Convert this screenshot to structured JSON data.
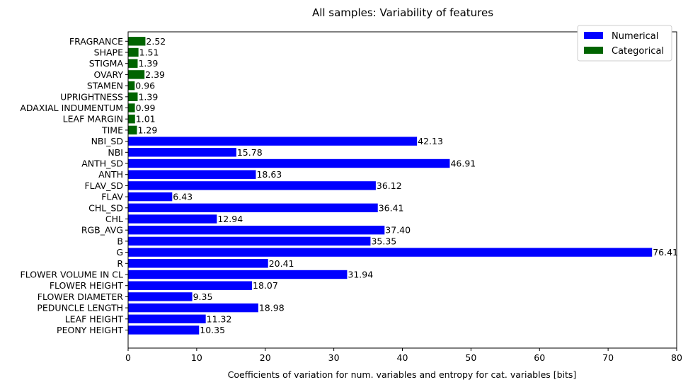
{
  "chart_data": {
    "type": "bar",
    "orientation": "horizontal",
    "title": "All samples: Variability of features",
    "xlabel": "Coefficients of variation for num. variables and entropy for cat. variables [bits]",
    "ylabel": "",
    "xlim": [
      0,
      80
    ],
    "xticks": [
      0,
      10,
      20,
      30,
      40,
      50,
      60,
      70,
      80
    ],
    "grid": false,
    "legend_position": "top-right",
    "legend": [
      {
        "name": "Numerical",
        "color": "#0000ff"
      },
      {
        "name": "Categorical",
        "color": "#006400"
      }
    ],
    "bars": [
      {
        "label": "PEONY HEIGHT",
        "value": 10.35,
        "value_label": "10.35",
        "group": "Numerical"
      },
      {
        "label": "LEAF HEIGHT",
        "value": 11.32,
        "value_label": "11.32",
        "group": "Numerical"
      },
      {
        "label": "PEDUNCLE LENGTH",
        "value": 18.98,
        "value_label": "18.98",
        "group": "Numerical"
      },
      {
        "label": "FLOWER DIAMETER",
        "value": 9.35,
        "value_label": "9.35",
        "group": "Numerical"
      },
      {
        "label": "FLOWER HEIGHT",
        "value": 18.07,
        "value_label": "18.07",
        "group": "Numerical"
      },
      {
        "label": "FLOWER VOLUME IN CL",
        "value": 31.94,
        "value_label": "31.94",
        "group": "Numerical"
      },
      {
        "label": "R",
        "value": 20.41,
        "value_label": "20.41",
        "group": "Numerical"
      },
      {
        "label": "G",
        "value": 76.41,
        "value_label": "76.41",
        "group": "Numerical"
      },
      {
        "label": "B",
        "value": 35.35,
        "value_label": "35.35",
        "group": "Numerical"
      },
      {
        "label": "RGB_AVG",
        "value": 37.4,
        "value_label": "37.40",
        "group": "Numerical"
      },
      {
        "label": "CHL",
        "value": 12.94,
        "value_label": "12.94",
        "group": "Numerical"
      },
      {
        "label": "CHL_SD",
        "value": 36.41,
        "value_label": "36.41",
        "group": "Numerical"
      },
      {
        "label": "FLAV",
        "value": 6.43,
        "value_label": "6.43",
        "group": "Numerical"
      },
      {
        "label": "FLAV_SD",
        "value": 36.12,
        "value_label": "36.12",
        "group": "Numerical"
      },
      {
        "label": "ANTH",
        "value": 18.63,
        "value_label": "18.63",
        "group": "Numerical"
      },
      {
        "label": "ANTH_SD",
        "value": 46.91,
        "value_label": "46.91",
        "group": "Numerical"
      },
      {
        "label": "NBI",
        "value": 15.78,
        "value_label": "15.78",
        "group": "Numerical"
      },
      {
        "label": "NBI_SD",
        "value": 42.13,
        "value_label": "42.13",
        "group": "Numerical"
      },
      {
        "label": "TIME",
        "value": 1.29,
        "value_label": "1.29",
        "group": "Categorical"
      },
      {
        "label": "LEAF MARGIN",
        "value": 1.01,
        "value_label": "1.01",
        "group": "Categorical"
      },
      {
        "label": "ADAXIAL INDUMENTUM",
        "value": 0.99,
        "value_label": "0.99",
        "group": "Categorical"
      },
      {
        "label": "UPRIGHTNESS",
        "value": 1.39,
        "value_label": "1.39",
        "group": "Categorical"
      },
      {
        "label": "STAMEN",
        "value": 0.96,
        "value_label": "0.96",
        "group": "Categorical"
      },
      {
        "label": "OVARY",
        "value": 2.39,
        "value_label": "2.39",
        "group": "Categorical"
      },
      {
        "label": "STIGMA",
        "value": 1.39,
        "value_label": "1.39",
        "group": "Categorical"
      },
      {
        "label": "SHAPE",
        "value": 1.51,
        "value_label": "1.51",
        "group": "Categorical"
      },
      {
        "label": "FRAGRANCE",
        "value": 2.52,
        "value_label": "2.52",
        "group": "Categorical"
      }
    ]
  }
}
